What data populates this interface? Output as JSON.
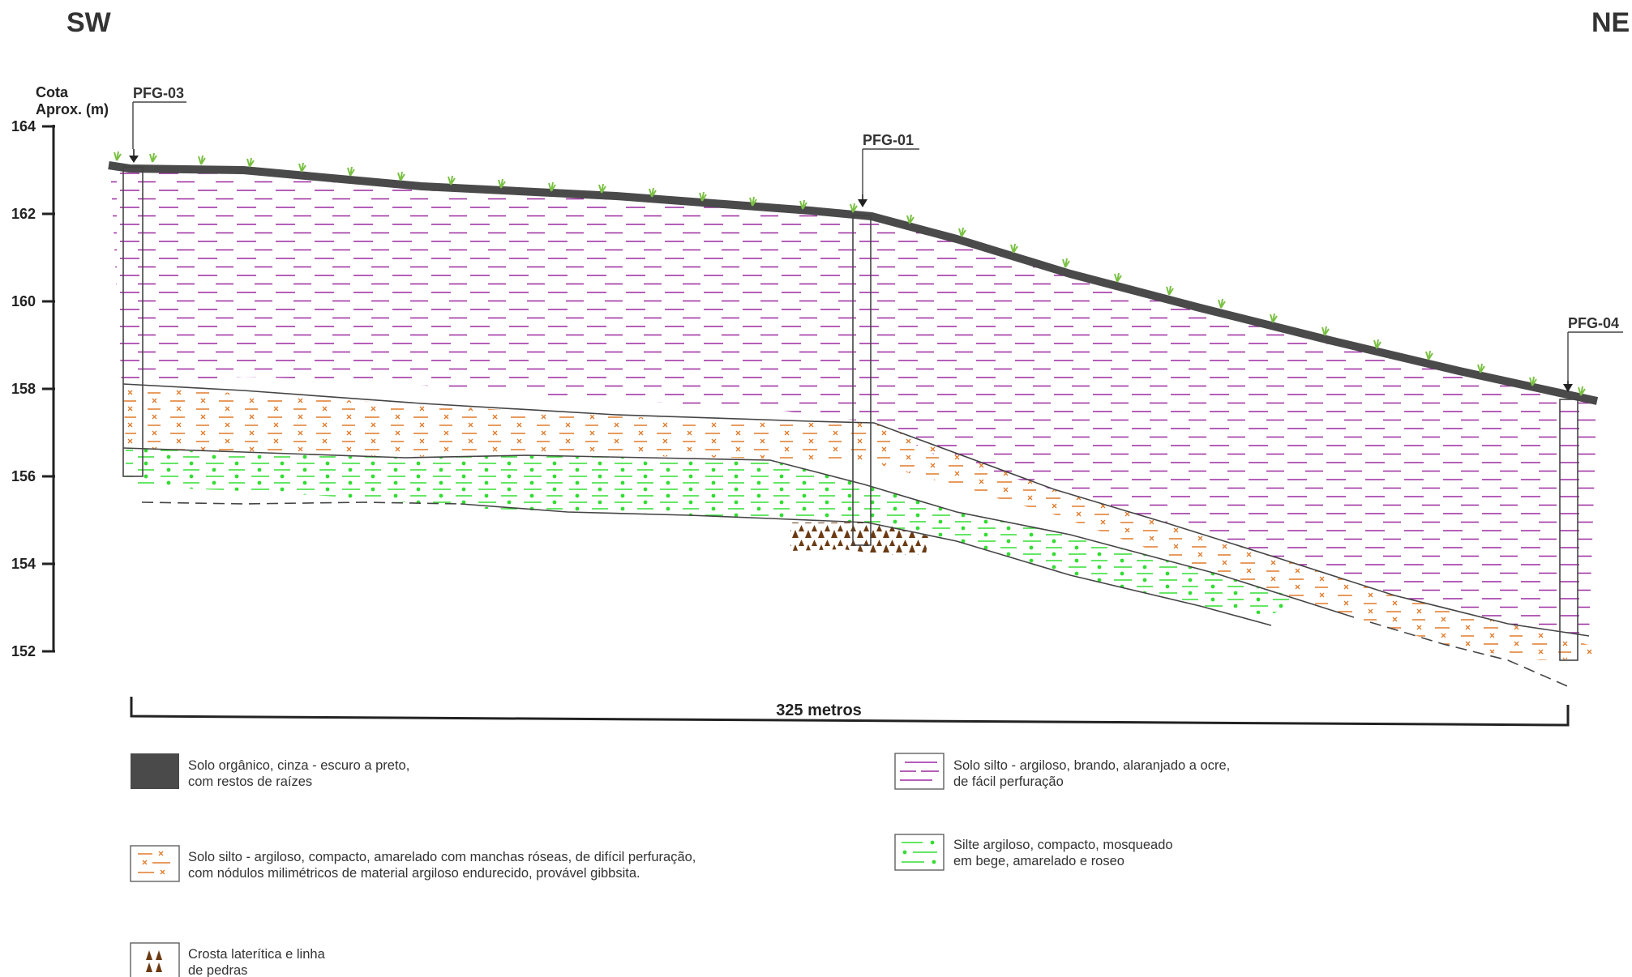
{
  "orientation": {
    "left": "SW",
    "right": "NE"
  },
  "axis": {
    "title_line1": "Cota",
    "title_line2": "Aprox. (m)",
    "ticks": [
      "164",
      "162",
      "160",
      "158",
      "156",
      "154",
      "152"
    ]
  },
  "wells": [
    {
      "name": "PFG-03"
    },
    {
      "name": "PFG-01"
    },
    {
      "name": "PFG-04"
    }
  ],
  "scale_bar": {
    "label": "325 metros"
  },
  "legend": [
    {
      "id": "organic",
      "line1": "Solo orgânico, cinza - escuro a preto,",
      "line2": "com restos de raízes"
    },
    {
      "id": "soft",
      "line1": "Solo silto - argiloso, brando, alaranjado a ocre,",
      "line2": "de fácil perfuração"
    },
    {
      "id": "compact",
      "line1": "Solo silto - argiloso, compacto, amarelado com manchas róseas, de difícil perfuração,",
      "line2": "com nódulos milimétricos de material argiloso endurecido, provável gibbsita."
    },
    {
      "id": "silt",
      "line1": "Silte argiloso, compacto, mosqueado",
      "line2": "em bege, amarelado e roseo"
    },
    {
      "id": "crust",
      "line1": "Crosta laterítica e linha",
      "line2": "de pedras"
    }
  ],
  "colors": {
    "organic": "#4a4a4a",
    "purple": "#9c2aa0",
    "orange": "#e07a2a",
    "green": "#33dd33",
    "crust": "#6b3a12",
    "grass": "#7ac143",
    "line": "#444444"
  }
}
